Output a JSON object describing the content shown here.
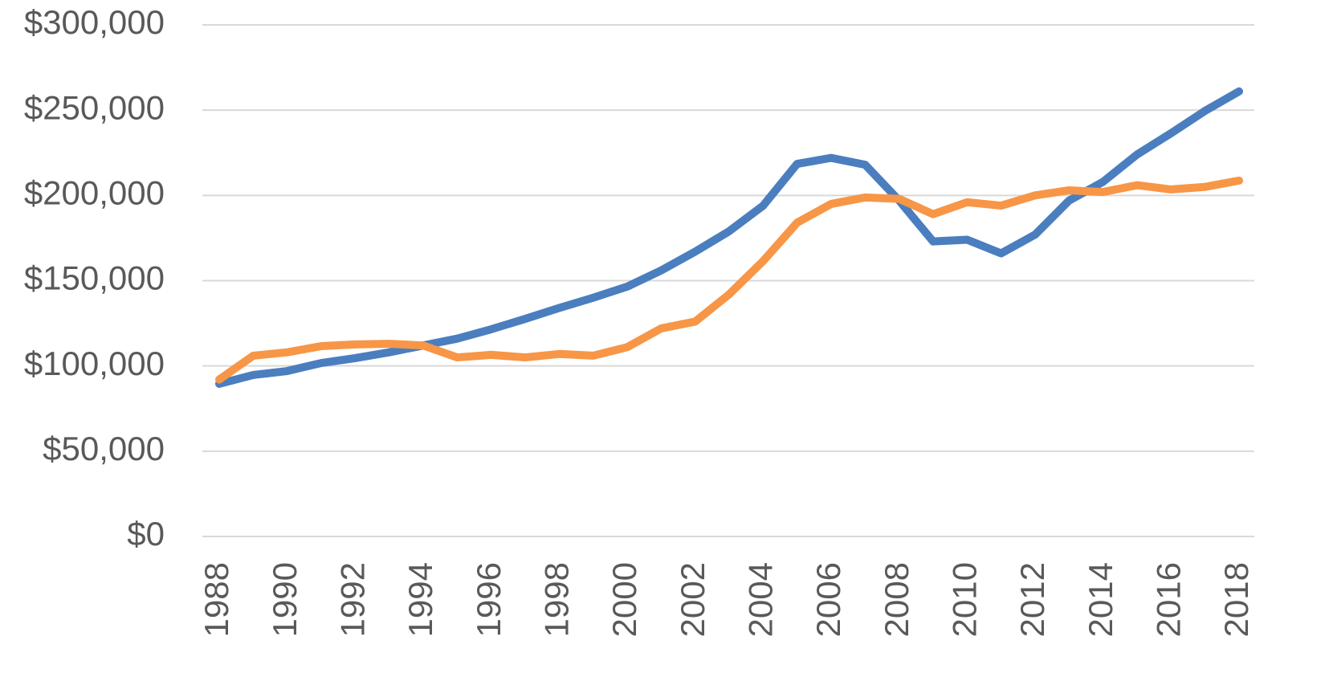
{
  "chart_data": {
    "type": "line",
    "x": [
      1988,
      1989,
      1990,
      1991,
      1992,
      1993,
      1994,
      1995,
      1996,
      1997,
      1998,
      1999,
      2000,
      2001,
      2002,
      2003,
      2004,
      2005,
      2006,
      2007,
      2008,
      2009,
      2010,
      2011,
      2012,
      2013,
      2014,
      2015,
      2016,
      2017,
      2018
    ],
    "series": [
      {
        "color": "#4a7ebf",
        "values": [
          89500,
          94700,
          97000,
          101700,
          104600,
          108000,
          112000,
          116000,
          121500,
          127600,
          134000,
          140000,
          146500,
          156000,
          167000,
          179000,
          194000,
          218500,
          222000,
          218000,
          197000,
          173000,
          174000,
          166000,
          177000,
          197000,
          208000,
          224000,
          236500,
          249600,
          261000
        ]
      },
      {
        "color": "#f79646",
        "values": [
          92000,
          106000,
          108000,
          111600,
          112600,
          113000,
          112000,
          105000,
          106500,
          105000,
          107000,
          106000,
          111000,
          122000,
          126000,
          142000,
          161500,
          184000,
          195000,
          198800,
          198000,
          189000,
          196000,
          194000,
          200000,
          203000,
          202000,
          206000,
          203500,
          205000,
          208700
        ]
      }
    ],
    "xlim": [
      1988,
      2018
    ],
    "xticks": [
      1988,
      1990,
      1992,
      1994,
      1996,
      1998,
      2000,
      2002,
      2004,
      2006,
      2008,
      2010,
      2012,
      2014,
      2016,
      2018
    ],
    "ylim": [
      0,
      300000
    ],
    "yticks": [
      {
        "value": 0,
        "label": "$0"
      },
      {
        "value": 50000,
        "label": "$50,000"
      },
      {
        "value": 100000,
        "label": "$100,000"
      },
      {
        "value": 150000,
        "label": "$150,000"
      },
      {
        "value": 200000,
        "label": "$200,000"
      },
      {
        "value": 250000,
        "label": "$250,000"
      },
      {
        "value": 300000,
        "label": "$300,000"
      }
    ],
    "grid": true
  }
}
